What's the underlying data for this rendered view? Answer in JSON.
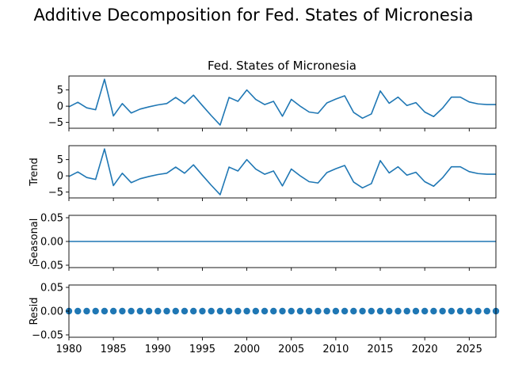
{
  "chart_data": {
    "type": "line",
    "title": "Additive Decomposition for Fed. States of Micronesia",
    "subtitle": "Fed. States of Micronesia",
    "x": [
      1980,
      1981,
      1982,
      1983,
      1984,
      1985,
      1986,
      1987,
      1988,
      1989,
      1990,
      1991,
      1992,
      1993,
      1994,
      1995,
      1996,
      1997,
      1998,
      1999,
      2000,
      2001,
      2002,
      2003,
      2004,
      2005,
      2006,
      2007,
      2008,
      2009,
      2010,
      2011,
      2012,
      2013,
      2014,
      2015,
      2016,
      2017,
      2018,
      2019,
      2020,
      2021,
      2022,
      2023,
      2024,
      2025,
      2026,
      2027,
      2028
    ],
    "xlim": [
      1980,
      2028
    ],
    "xticks": [
      1980,
      1985,
      1990,
      1995,
      2000,
      2005,
      2010,
      2015,
      2020,
      2025
    ],
    "color": "#1f77b4",
    "panels": [
      {
        "ylabel": "",
        "style": "line",
        "ylim": [
          -6.8,
          9.3
        ],
        "yticks": [
          -5,
          0,
          5
        ],
        "values": [
          -0.2,
          1.2,
          -0.5,
          -1.1,
          8.3,
          -3.0,
          0.8,
          -2.1,
          -0.9,
          -0.2,
          0.4,
          0.8,
          2.7,
          0.8,
          3.4,
          0.2,
          -2.9,
          -5.8,
          2.7,
          1.5,
          5.0,
          2.1,
          0.5,
          1.5,
          -3.1,
          2.1,
          0.0,
          -1.8,
          -2.2,
          1.0,
          2.2,
          3.2,
          -1.9,
          -3.7,
          -2.4,
          4.7,
          0.9,
          2.8,
          0.2,
          1.1,
          -1.8,
          -3.2,
          -0.6,
          2.8,
          2.8,
          1.3,
          0.7,
          0.5,
          0.5
        ]
      },
      {
        "ylabel": "Trend",
        "style": "line",
        "ylim": [
          -6.8,
          9.3
        ],
        "yticks": [
          -5,
          0,
          5
        ],
        "values": [
          -0.2,
          1.2,
          -0.5,
          -1.1,
          8.3,
          -3.0,
          0.8,
          -2.1,
          -0.9,
          -0.2,
          0.4,
          0.8,
          2.7,
          0.8,
          3.4,
          0.2,
          -2.9,
          -5.8,
          2.7,
          1.5,
          5.0,
          2.1,
          0.5,
          1.5,
          -3.1,
          2.1,
          0.0,
          -1.8,
          -2.2,
          1.0,
          2.2,
          3.2,
          -1.9,
          -3.7,
          -2.4,
          4.7,
          0.9,
          2.8,
          0.2,
          1.1,
          -1.8,
          -3.2,
          -0.6,
          2.8,
          2.8,
          1.3,
          0.7,
          0.5,
          0.5
        ]
      },
      {
        "ylabel": "Seasonal",
        "style": "line",
        "ylim": [
          -0.055,
          0.055
        ],
        "yticks": [
          -0.05,
          0.0,
          0.05
        ],
        "values": [
          0,
          0,
          0,
          0,
          0,
          0,
          0,
          0,
          0,
          0,
          0,
          0,
          0,
          0,
          0,
          0,
          0,
          0,
          0,
          0,
          0,
          0,
          0,
          0,
          0,
          0,
          0,
          0,
          0,
          0,
          0,
          0,
          0,
          0,
          0,
          0,
          0,
          0,
          0,
          0,
          0,
          0,
          0,
          0,
          0,
          0,
          0,
          0,
          0
        ]
      },
      {
        "ylabel": "Resid",
        "style": "scatter",
        "ylim": [
          -0.055,
          0.055
        ],
        "yticks": [
          -0.05,
          0.0,
          0.05
        ],
        "values": [
          0,
          0,
          0,
          0,
          0,
          0,
          0,
          0,
          0,
          0,
          0,
          0,
          0,
          0,
          0,
          0,
          0,
          0,
          0,
          0,
          0,
          0,
          0,
          0,
          0,
          0,
          0,
          0,
          0,
          0,
          0,
          0,
          0,
          0,
          0,
          0,
          0,
          0,
          0,
          0,
          0,
          0,
          0,
          0,
          0,
          0,
          0,
          0,
          0
        ]
      }
    ]
  }
}
